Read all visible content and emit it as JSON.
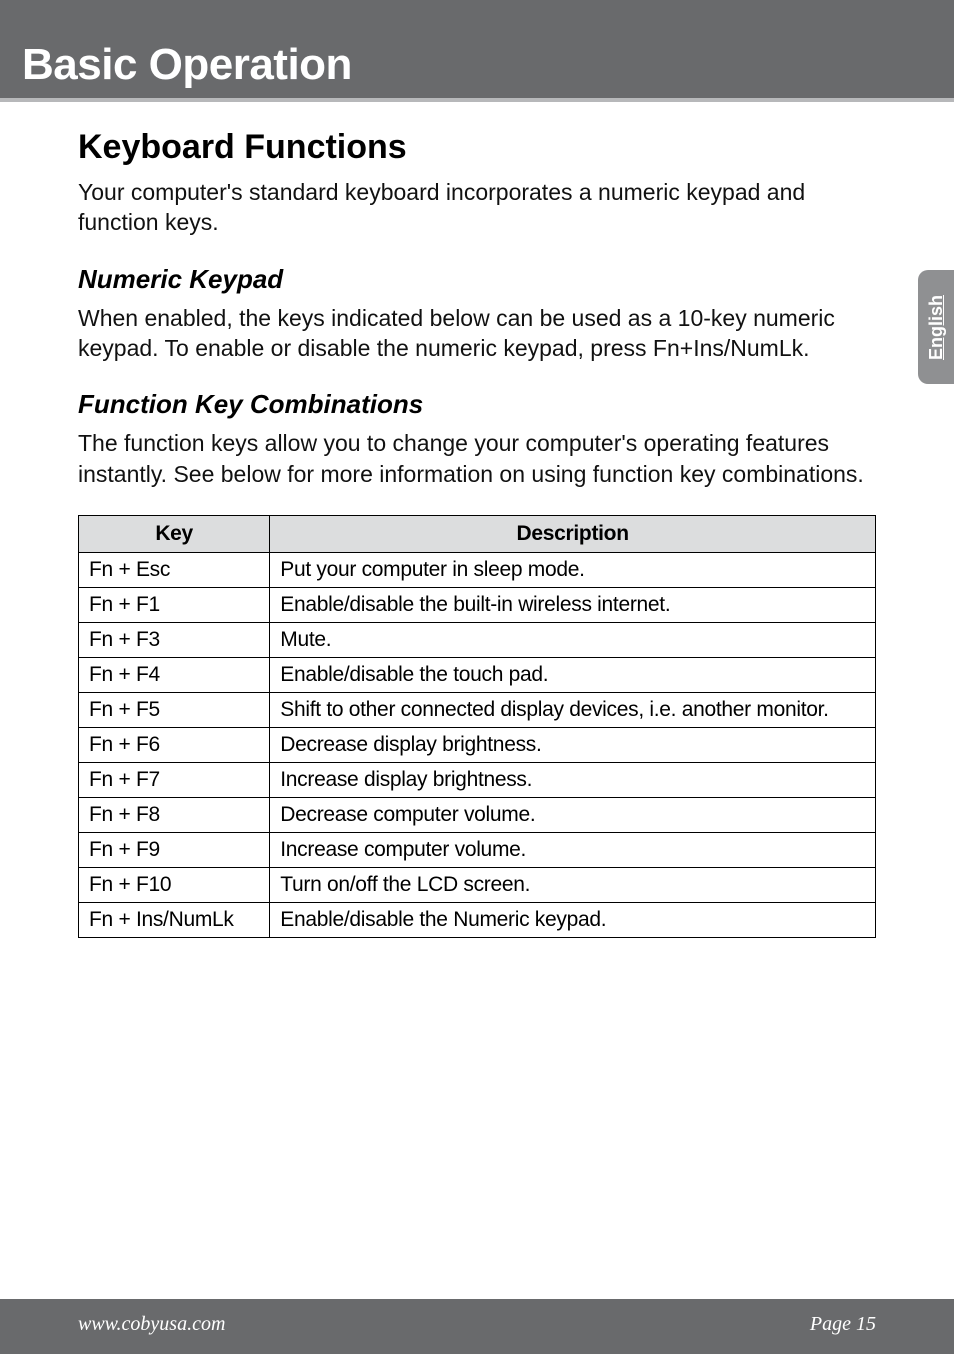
{
  "header": {
    "title": "Basic Operation"
  },
  "side_tab": {
    "label": "English"
  },
  "section": {
    "h1": "Keyboard Functions",
    "intro": "Your computer's standard keyboard incorporates a numeric keypad and function keys.",
    "numeric": {
      "heading": "Numeric Keypad",
      "body": "When enabled, the keys indicated below can be used as a 10-key numeric keypad. To enable or disable the numeric keypad, press Fn+Ins/NumLk."
    },
    "fnkeys": {
      "heading": "Function Key Combinations",
      "body": "The function keys allow you to change your computer's operating features instantly. See below for more information on using function key combinations."
    }
  },
  "table": {
    "columns": [
      "Key",
      "Description"
    ],
    "header_bg": "#dcddde",
    "border_color": "#000000",
    "rows": [
      [
        "Fn + Esc",
        "Put your computer in sleep mode."
      ],
      [
        "Fn + F1",
        " Enable/disable the built-in wireless internet."
      ],
      [
        "Fn + F3",
        "Mute."
      ],
      [
        "Fn + F4",
        "Enable/disable the touch pad."
      ],
      [
        "Fn + F5",
        "Shift to other connected display devices, i.e. another monitor."
      ],
      [
        "Fn + F6",
        "Decrease display brightness."
      ],
      [
        "Fn + F7",
        "Increase display brightness."
      ],
      [
        "Fn + F8",
        "Decrease computer volume."
      ],
      [
        "Fn + F9",
        "Increase computer volume."
      ],
      [
        "Fn + F10",
        "Turn on/off the LCD screen."
      ],
      [
        "Fn + Ins/NumLk",
        "Enable/disable the Numeric keypad."
      ]
    ]
  },
  "footer": {
    "left": "www.cobyusa.com",
    "right": "Page 15"
  }
}
